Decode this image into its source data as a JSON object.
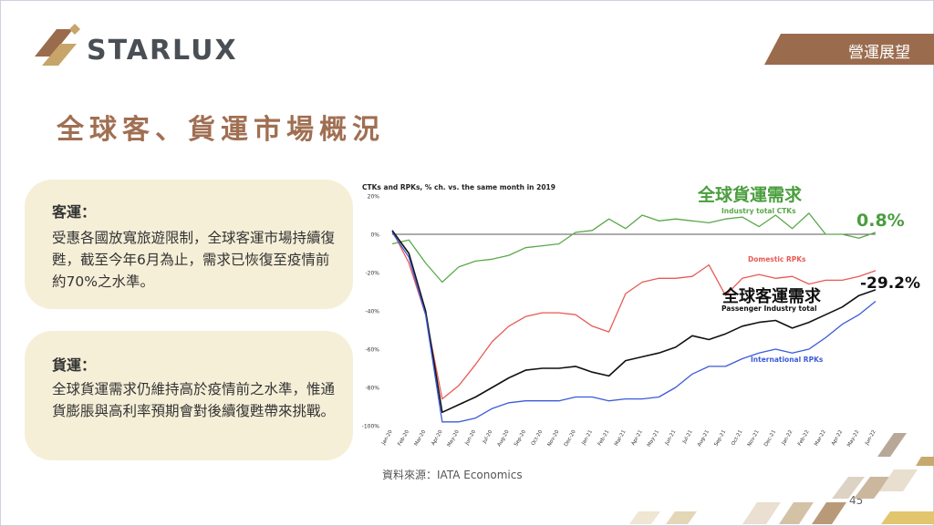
{
  "brand": {
    "name": "STARLUX"
  },
  "section_tag": "營運展望",
  "page_title": "全球客、貨運市場概況",
  "cards": [
    {
      "heading": "客運：",
      "body": "受惠各國放寬旅遊限制，全球客運市場持續復甦，截至今年6月為止，需求已恢復至疫情前約70%之水準。"
    },
    {
      "heading": "貨運：",
      "body": "全球貨運需求仍維持高於疫情前之水準，惟通貨膨脹與高利率預期會對後續復甦帶來挑戰。"
    }
  ],
  "source": "資料來源：IATA Economics",
  "page_number": "45",
  "chart_data": {
    "type": "line",
    "title": "CTKs and RPKs, % ch. vs. the same month in 2019",
    "x": [
      "Jan-20",
      "Feb-20",
      "Mar-20",
      "Apr-20",
      "May-20",
      "Jun-20",
      "Jul-20",
      "Aug-20",
      "Sep-20",
      "Oct-20",
      "Nov-20",
      "Dec-20",
      "Jan-21",
      "Feb-21",
      "Mar-21",
      "Apr-21",
      "May-21",
      "Jun-21",
      "Jul-21",
      "Aug-21",
      "Sep-21",
      "Oct-21",
      "Nov-21",
      "Dec-21",
      "Jan-22",
      "Feb-22",
      "Mar-22",
      "Apr-22",
      "May-22",
      "Jun-22"
    ],
    "yticks": [
      "20%",
      "0%",
      "-20%",
      "-40%",
      "-60%",
      "-80%",
      "-100%"
    ],
    "ylim": [
      -100,
      20
    ],
    "series": [
      {
        "name": "Industry total CTKs",
        "color": "#5aa84a",
        "values": [
          -5,
          -3,
          -15,
          -25,
          -17,
          -14,
          -13,
          -11,
          -7,
          -6,
          -5,
          1,
          2,
          8,
          3,
          10,
          7,
          8,
          7,
          6,
          8,
          9,
          4,
          10,
          3,
          11,
          0,
          0,
          -2,
          1
        ]
      },
      {
        "name": "Domestic RPKs",
        "color": "#e85a55",
        "values": [
          2,
          -15,
          -42,
          -86,
          -79,
          -68,
          -56,
          -48,
          -43,
          -41,
          -41,
          -42,
          -48,
          -51,
          -31,
          -25,
          -23,
          -23,
          -22,
          -16,
          -32,
          -23,
          -21,
          -23,
          -22,
          -26,
          -24,
          -24,
          -22,
          -19
        ]
      },
      {
        "name": "Passenger Industry total",
        "color": "#111111",
        "values": [
          2,
          -10,
          -40,
          -93,
          -89,
          -85,
          -80,
          -75,
          -71,
          -70,
          -70,
          -69,
          -72,
          -74,
          -66,
          -64,
          -62,
          -59,
          -53,
          -55,
          -52,
          -48,
          -46,
          -45,
          -49,
          -46,
          -42,
          -38,
          -32,
          -29
        ]
      },
      {
        "name": "International RPKs",
        "color": "#3b5bd6",
        "values": [
          1,
          -12,
          -42,
          -98,
          -98,
          -96,
          -91,
          -88,
          -87,
          -87,
          -87,
          -85,
          -85,
          -87,
          -86,
          -86,
          -85,
          -80,
          -73,
          -69,
          -69,
          -65,
          -62,
          -60,
          -62,
          -60,
          -54,
          -47,
          -42,
          -35
        ]
      }
    ],
    "annotations": {
      "cargo_label": "全球貨運需求",
      "cargo_value": "0.8%",
      "passenger_label": "全球客運需求",
      "passenger_value": "-29.2%"
    }
  }
}
